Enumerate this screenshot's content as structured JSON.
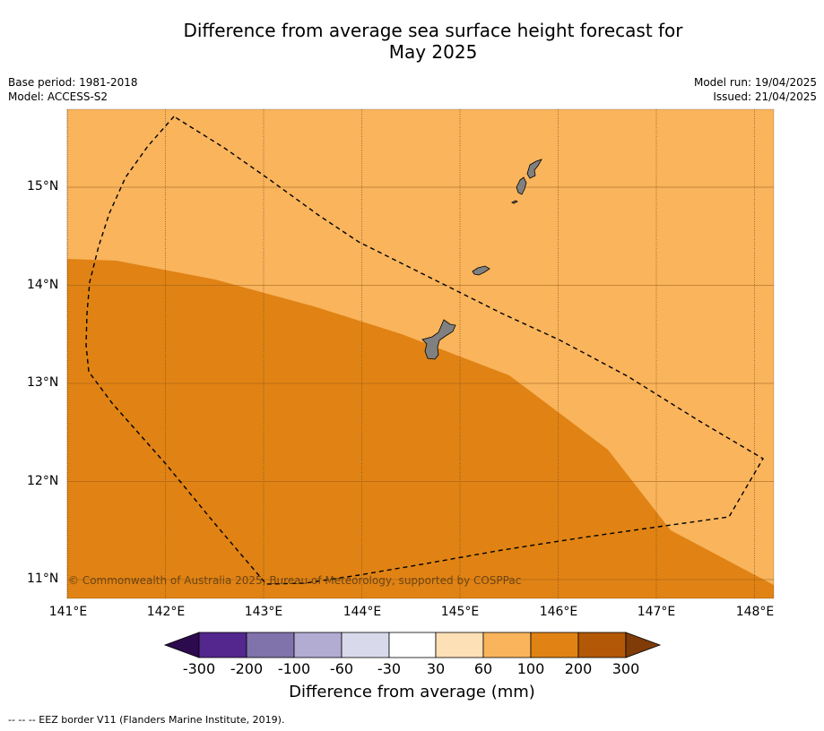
{
  "title_line1": "Difference from average sea surface height forecast for",
  "title_line2": "May 2025",
  "meta_left": {
    "base_period": "Base period: 1981-2018",
    "model": "Model: ACCESS-S2"
  },
  "meta_right": {
    "model_run": "Model run: 19/04/2025",
    "issued": "Issued: 21/04/2025"
  },
  "map": {
    "lat_labels": [
      "15°N",
      "14°N",
      "13°N",
      "12°N",
      "11°N"
    ],
    "lon_labels": [
      "141°E",
      "142°E",
      "143°E",
      "144°E",
      "145°E",
      "146°E",
      "147°E",
      "148°E"
    ],
    "copyright": "© Commonwealth of Australia 2025, Bureau of Meteorology, supported by COSPPac",
    "zones": [
      {
        "range": "60 to 100 mm",
        "color": "#f9b45c"
      },
      {
        "range": "100 to 200 mm",
        "color": "#e08314"
      }
    ],
    "land_color": "#808080"
  },
  "colorbar": {
    "title": "Difference from average (mm)",
    "tick_labels": [
      "-300",
      "-200",
      "-100",
      "-60",
      "-30",
      "30",
      "60",
      "100",
      "200",
      "300"
    ],
    "colors": [
      "#2d0a4e",
      "#54278f",
      "#8073ac",
      "#b2abd2",
      "#d8daeb",
      "#ffffff",
      "#fee0b6",
      "#f9b45c",
      "#e08314",
      "#b35806",
      "#7f3b08"
    ]
  },
  "footnote": "--  --  -- EEZ border V11 (Flanders Marine Institute, 2019)."
}
